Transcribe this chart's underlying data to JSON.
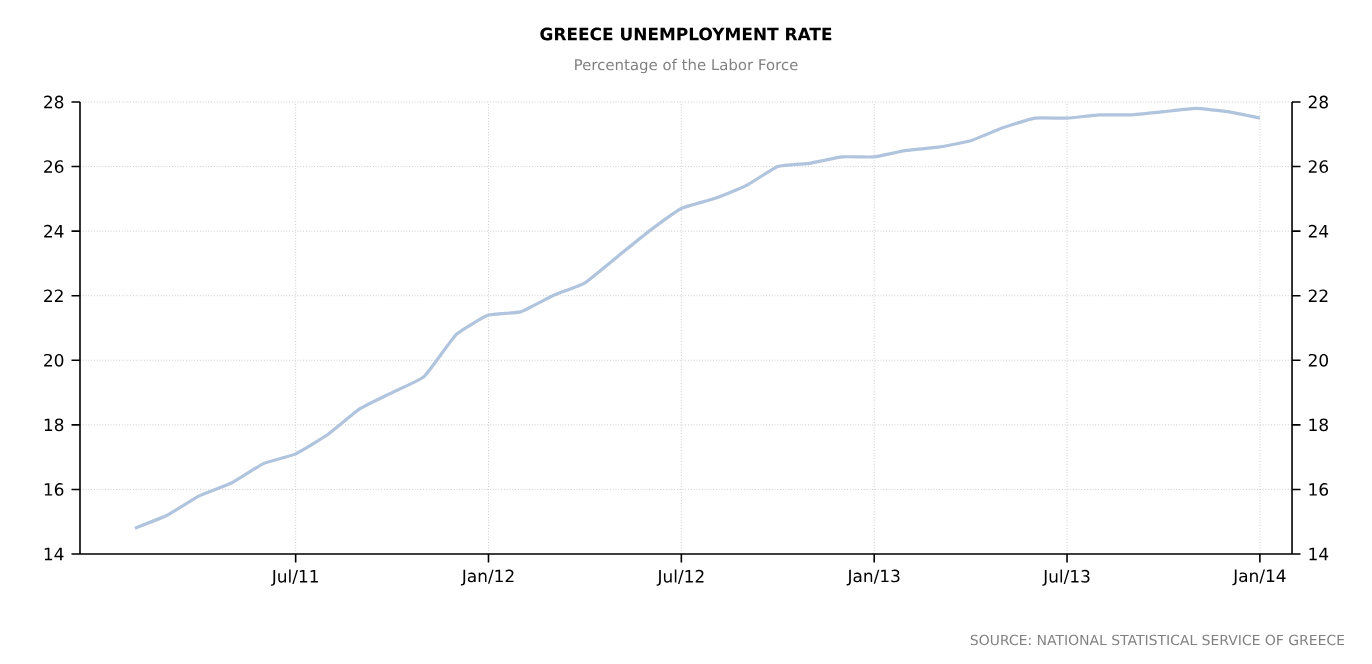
{
  "chart_data": {
    "type": "line",
    "title": "GREECE UNEMPLOYMENT RATE",
    "subtitle": "Percentage of the Labor Force",
    "x": [
      "2011-02",
      "2011-03",
      "2011-04",
      "2011-05",
      "2011-06",
      "2011-07",
      "2011-08",
      "2011-09",
      "2011-10",
      "2011-11",
      "2011-12",
      "2012-01",
      "2012-02",
      "2012-03",
      "2012-04",
      "2012-05",
      "2012-06",
      "2012-07",
      "2012-08",
      "2012-09",
      "2012-10",
      "2012-11",
      "2012-12",
      "2013-01",
      "2013-02",
      "2013-03",
      "2013-04",
      "2013-05",
      "2013-06",
      "2013-07",
      "2013-08",
      "2013-09",
      "2013-10",
      "2013-11",
      "2013-12",
      "2014-01"
    ],
    "series": [
      {
        "color": "#b0c4de",
        "values": [
          14.8,
          15.2,
          15.8,
          16.2,
          16.8,
          17.1,
          17.7,
          18.5,
          19.0,
          19.5,
          20.8,
          21.4,
          21.5,
          22.0,
          22.4,
          23.2,
          24.0,
          24.7,
          25.0,
          25.4,
          26.0,
          26.1,
          26.3,
          26.3,
          26.5,
          26.6,
          26.8,
          27.2,
          27.5,
          27.5,
          27.6,
          27.6,
          27.7,
          27.8,
          27.7,
          27.5
        ]
      }
    ],
    "xlim": [
      "2010-12-10",
      "2014-02-01"
    ],
    "xticks": [
      {
        "value": "2011-07",
        "label": "Jul/11"
      },
      {
        "value": "2012-01",
        "label": "Jan/12"
      },
      {
        "value": "2012-07",
        "label": "Jul/12"
      },
      {
        "value": "2013-01",
        "label": "Jan/13"
      },
      {
        "value": "2013-07",
        "label": "Jul/13"
      },
      {
        "value": "2014-01",
        "label": "Jan/14"
      }
    ],
    "ylim": [
      14,
      28
    ],
    "yticks": [
      14,
      16,
      18,
      20,
      22,
      24,
      26,
      28
    ],
    "y2lim": [
      14,
      28
    ],
    "y2ticks": [
      14,
      16,
      18,
      20,
      22,
      24,
      26,
      28
    ],
    "grid": true,
    "marker": "none",
    "line_style": "solid",
    "annotations": [
      "SOURCE: NATIONAL STATISTICAL SERVICE OF GREECE"
    ]
  }
}
